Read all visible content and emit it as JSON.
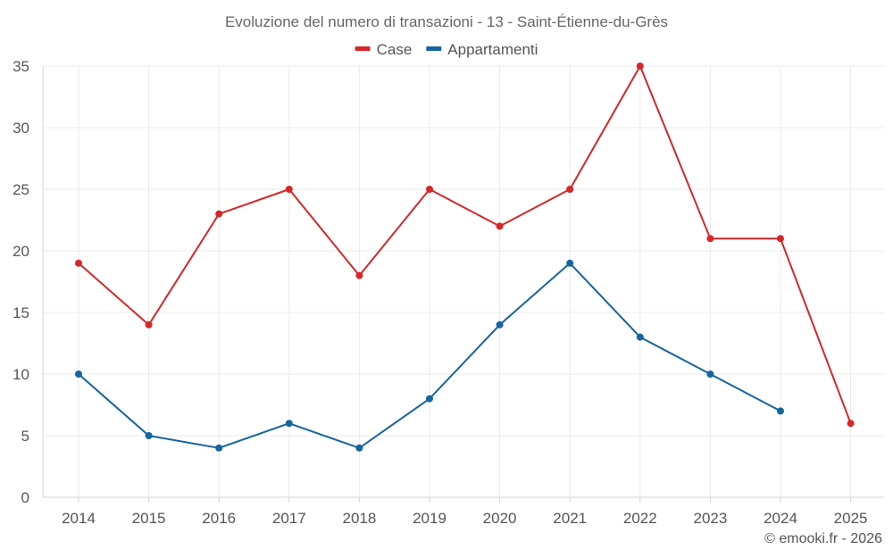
{
  "chart_data": {
    "type": "line",
    "title": "Evoluzione del numero di transazioni - 13 - Saint-Étienne-du-Grès",
    "xlabel": "",
    "ylabel": "",
    "x": [
      "2014",
      "2015",
      "2016",
      "2017",
      "2018",
      "2019",
      "2020",
      "2021",
      "2022",
      "2023",
      "2024",
      "2025"
    ],
    "ylim": [
      0,
      35
    ],
    "yticks": [
      0,
      5,
      10,
      15,
      20,
      25,
      30,
      35
    ],
    "grid": true,
    "legend_position": "top-center",
    "series": [
      {
        "name": "Case",
        "color": "#d62728",
        "values": [
          19,
          14,
          23,
          25,
          18,
          25,
          22,
          25,
          35,
          21,
          21,
          6
        ]
      },
      {
        "name": "Appartamenti",
        "color": "#1565a0",
        "values": [
          10,
          5,
          4,
          6,
          4,
          8,
          14,
          19,
          13,
          10,
          7,
          null
        ]
      }
    ]
  },
  "footer": {
    "credit": "© emooki.fr - 2026"
  }
}
